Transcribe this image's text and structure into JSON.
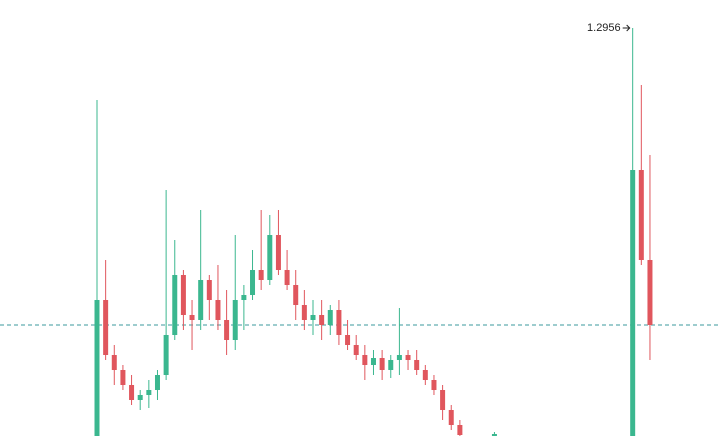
{
  "chart_data": {
    "type": "candlestick",
    "open": [
      0.8876,
      1.0236,
      0.9686,
      0.9536,
      0.9386,
      0.9236,
      0.9286,
      0.9336,
      0.9486,
      0.9886,
      1.0486,
      1.0086,
      1.0036,
      1.0436,
      1.0236,
      1.0036,
      0.9836,
      1.0236,
      1.0286,
      1.0536,
      1.0436,
      1.0886,
      1.0536,
      1.0386,
      1.0186,
      1.0036,
      1.0086,
      0.9986,
      1.0136,
      0.9886,
      0.9786,
      0.9686,
      0.9586,
      0.9656,
      0.9536,
      0.9636,
      0.9686,
      0.9636,
      0.9536,
      0.9436,
      0.9336,
      0.9136,
      0.8986,
      null,
      null,
      null,
      0.8876,
      null,
      null,
      null,
      null,
      null,
      null,
      null,
      null,
      null,
      null,
      null,
      null,
      null,
      null,
      null,
      0.8876,
      1.1536,
      1.0636
    ],
    "high": [
      1.2236,
      1.0636,
      0.9786,
      0.9586,
      0.9486,
      0.9336,
      0.9436,
      0.9536,
      1.1336,
      1.0836,
      1.0536,
      1.0236,
      1.1136,
      1.0486,
      1.0586,
      1.0336,
      1.0886,
      1.0386,
      1.0736,
      1.1136,
      1.1086,
      1.1136,
      1.0736,
      1.0536,
      1.0336,
      1.0236,
      1.0236,
      1.0186,
      1.0236,
      1.0036,
      0.9886,
      0.9786,
      0.9736,
      0.9736,
      0.9686,
      1.0156,
      0.9736,
      0.9736,
      0.9586,
      0.9486,
      0.9386,
      0.9186,
      0.9036,
      null,
      null,
      null,
      0.8916,
      null,
      null,
      null,
      null,
      null,
      null,
      null,
      null,
      null,
      null,
      null,
      null,
      null,
      null,
      null,
      1.2956,
      1.2386,
      1.1686
    ],
    "low": [
      0.8876,
      0.9636,
      0.9386,
      0.9336,
      0.9186,
      0.9136,
      0.9156,
      0.9236,
      0.9436,
      0.9836,
      0.9936,
      0.9736,
      0.9936,
      1.0036,
      0.9936,
      0.9686,
      0.9736,
      0.9936,
      1.0236,
      1.0336,
      1.0386,
      1.0486,
      1.0336,
      1.0036,
      0.9936,
      0.9886,
      0.9836,
      0.9886,
      0.9786,
      0.9736,
      0.9636,
      0.9436,
      0.9486,
      0.9436,
      0.9456,
      0.9486,
      0.9536,
      0.9486,
      0.9386,
      0.9286,
      0.9036,
      0.8936,
      0.8876,
      null,
      null,
      null,
      0.8876,
      null,
      null,
      null,
      null,
      null,
      null,
      null,
      null,
      null,
      null,
      null,
      null,
      null,
      null,
      null,
      0.8876,
      1.0586,
      0.9636
    ],
    "close": [
      1.0236,
      0.9686,
      0.9536,
      0.9386,
      0.9236,
      0.9286,
      0.9336,
      0.9486,
      0.9886,
      1.0486,
      1.0086,
      1.0036,
      1.0436,
      1.0236,
      1.0036,
      0.9836,
      1.0236,
      1.0286,
      1.0536,
      1.0436,
      1.0886,
      1.0536,
      1.0386,
      1.0186,
      1.0036,
      1.0086,
      0.9986,
      1.0136,
      0.9886,
      0.9786,
      0.9686,
      0.9586,
      0.9656,
      0.9536,
      0.9636,
      0.9686,
      0.9636,
      0.9536,
      0.9436,
      0.9336,
      0.9136,
      0.8986,
      0.8886,
      null,
      null,
      null,
      0.8896,
      null,
      null,
      null,
      null,
      null,
      null,
      null,
      null,
      null,
      null,
      null,
      null,
      null,
      null,
      null,
      1.1536,
      1.0636,
      0.9986
    ],
    "ylim": [
      0.8876,
      1.3236
    ],
    "price_line": 0.9986,
    "up_color": "#3bb78f",
    "down_color": "#e0565d",
    "line_color": "#3b9a9c"
  }
}
